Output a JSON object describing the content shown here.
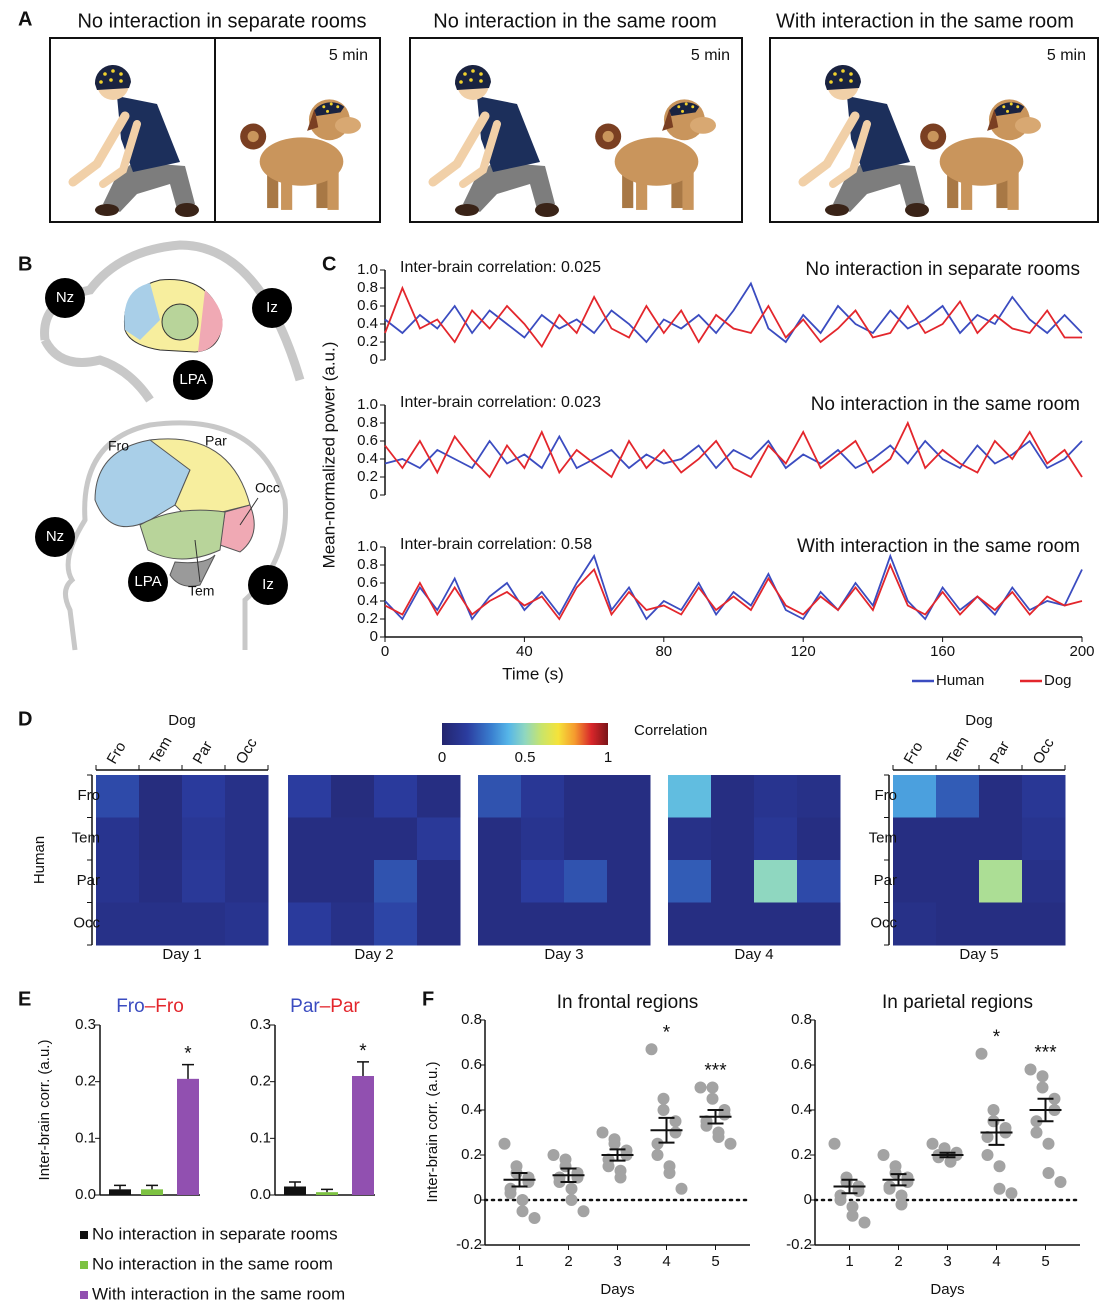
{
  "panel_labels": [
    "A",
    "B",
    "C",
    "D",
    "E",
    "F"
  ],
  "panel_a": [
    {
      "title": "No interaction in separate rooms",
      "duration": "5 min"
    },
    {
      "title": "No interaction in the same room",
      "duration": "5 min"
    },
    {
      "title": "With interaction in the same room",
      "duration": "5 min"
    }
  ],
  "panel_b": {
    "dog": [
      "Nz",
      "Iz",
      "LPA"
    ],
    "human": [
      "Fro",
      "Par",
      "Occ",
      "Nz",
      "LPA",
      "Tem",
      "Iz"
    ]
  },
  "chart_data": [
    {
      "type": "line",
      "ylabel": "Mean-normalized power (a.u.)",
      "xlabel": "Time (s)",
      "x": [
        0,
        5,
        10,
        15,
        20,
        25,
        30,
        35,
        40,
        45,
        50,
        55,
        60,
        65,
        70,
        75,
        80,
        85,
        90,
        95,
        100,
        105,
        110,
        115,
        120,
        125,
        130,
        135,
        140,
        145,
        150,
        155,
        160,
        165,
        170,
        175,
        180,
        185,
        190,
        195,
        200
      ],
      "xlim": [
        0,
        200
      ],
      "xticks": [
        0,
        40,
        80,
        120,
        160,
        200
      ],
      "ylim": [
        0,
        1
      ],
      "yticks": [
        0,
        0.2,
        0.4,
        0.6,
        0.8,
        {
          "value": 1,
          "label": "1.0"
        }
      ],
      "series": [
        {
          "name": "Human",
          "color": "#3b4cc0"
        },
        {
          "name": "Dog",
          "color": "#e3262c"
        }
      ],
      "panels": [
        {
          "annotation": "Inter-brain correlation: 0.025",
          "title": "No interaction in separate rooms",
          "values": [
            [
              0.45,
              0.3,
              0.5,
              0.35,
              0.6,
              0.3,
              0.55,
              0.4,
              0.25,
              0.5,
              0.35,
              0.45,
              0.3,
              0.55,
              0.4,
              0.2,
              0.45,
              0.35,
              0.5,
              0.3,
              0.55,
              0.85,
              0.35,
              0.2,
              0.5,
              0.3,
              0.6,
              0.4,
              0.3,
              0.55,
              0.35,
              0.45,
              0.6,
              0.3,
              0.5,
              0.4,
              0.7,
              0.45,
              0.3,
              0.5,
              0.3
            ],
            [
              0.3,
              0.8,
              0.35,
              0.45,
              0.2,
              0.55,
              0.35,
              0.6,
              0.4,
              0.15,
              0.5,
              0.3,
              0.7,
              0.35,
              0.25,
              0.6,
              0.3,
              0.55,
              0.2,
              0.5,
              0.35,
              0.3,
              0.6,
              0.25,
              0.45,
              0.2,
              0.35,
              0.55,
              0.25,
              0.3,
              0.6,
              0.3,
              0.4,
              0.65,
              0.3,
              0.5,
              0.35,
              0.3,
              0.55,
              0.25,
              0.25
            ]
          ]
        },
        {
          "annotation": "Inter-brain correlation: 0.023",
          "title": "No interaction  in the same room",
          "values": [
            [
              0.35,
              0.4,
              0.3,
              0.5,
              0.4,
              0.3,
              0.6,
              0.35,
              0.45,
              0.3,
              0.65,
              0.3,
              0.4,
              0.5,
              0.3,
              0.45,
              0.35,
              0.4,
              0.55,
              0.3,
              0.5,
              0.4,
              0.6,
              0.3,
              0.45,
              0.35,
              0.5,
              0.3,
              0.4,
              0.55,
              0.35,
              0.6,
              0.4,
              0.3,
              0.55,
              0.35,
              0.45,
              0.6,
              0.3,
              0.4,
              0.6
            ],
            [
              0.55,
              0.3,
              0.6,
              0.25,
              0.65,
              0.4,
              0.2,
              0.55,
              0.3,
              0.7,
              0.25,
              0.5,
              0.35,
              0.2,
              0.6,
              0.3,
              0.5,
              0.25,
              0.4,
              0.6,
              0.3,
              0.2,
              0.55,
              0.35,
              0.7,
              0.3,
              0.45,
              0.6,
              0.25,
              0.4,
              0.8,
              0.3,
              0.5,
              0.35,
              0.25,
              0.6,
              0.4,
              0.7,
              0.35,
              0.5,
              0.2
            ]
          ]
        },
        {
          "annotation": "Inter-brain correlation: 0.58",
          "title": "With interaction in the same room",
          "values": [
            [
              0.4,
              0.2,
              0.55,
              0.3,
              0.65,
              0.2,
              0.45,
              0.6,
              0.3,
              0.5,
              0.25,
              0.6,
              0.9,
              0.3,
              0.55,
              0.2,
              0.4,
              0.3,
              0.6,
              0.25,
              0.5,
              0.35,
              0.7,
              0.3,
              0.2,
              0.5,
              0.3,
              0.6,
              0.35,
              0.9,
              0.4,
              0.2,
              0.55,
              0.3,
              0.45,
              0.25,
              0.55,
              0.3,
              0.4,
              0.35,
              0.75
            ],
            [
              0.35,
              0.25,
              0.6,
              0.25,
              0.55,
              0.25,
              0.4,
              0.5,
              0.35,
              0.45,
              0.2,
              0.55,
              0.75,
              0.25,
              0.5,
              0.3,
              0.35,
              0.25,
              0.55,
              0.3,
              0.45,
              0.3,
              0.65,
              0.35,
              0.25,
              0.45,
              0.3,
              0.55,
              0.3,
              0.8,
              0.35,
              0.25,
              0.5,
              0.25,
              0.45,
              0.3,
              0.5,
              0.25,
              0.45,
              0.35,
              0.4
            ]
          ]
        }
      ]
    },
    {
      "type": "heatmap",
      "row_label": "Human",
      "col_label": "Dog",
      "rows": [
        "Fro",
        "Tem",
        "Par",
        "Occ"
      ],
      "cols": [
        "Fro",
        "Tem",
        "Par",
        "Occ"
      ],
      "colorbar": {
        "label": "Correlation",
        "lim": [
          0,
          1
        ],
        "ticks": [
          0,
          0.5,
          1
        ]
      },
      "panels": [
        {
          "title": "Day 1",
          "values": [
            [
              0.18,
              0.05,
              0.14,
              0.08
            ],
            [
              0.1,
              0.05,
              0.12,
              0.08
            ],
            [
              0.1,
              0.06,
              0.13,
              0.08
            ],
            [
              0.08,
              0.08,
              0.08,
              0.1
            ]
          ]
        },
        {
          "title": "Day 2",
          "values": [
            [
              0.15,
              0.05,
              0.14,
              0.06
            ],
            [
              0.06,
              0.06,
              0.06,
              0.13
            ],
            [
              0.06,
              0.06,
              0.2,
              0.06
            ],
            [
              0.14,
              0.08,
              0.17,
              0.06
            ]
          ]
        },
        {
          "title": "Day 3",
          "values": [
            [
              0.2,
              0.12,
              0.06,
              0.06
            ],
            [
              0.06,
              0.1,
              0.06,
              0.06
            ],
            [
              0.06,
              0.15,
              0.2,
              0.06
            ],
            [
              0.06,
              0.06,
              0.06,
              0.06
            ]
          ]
        },
        {
          "title": "Day 4",
          "values": [
            [
              0.42,
              0.06,
              0.1,
              0.08
            ],
            [
              0.08,
              0.06,
              0.12,
              0.06
            ],
            [
              0.22,
              0.06,
              0.5,
              0.18
            ],
            [
              0.06,
              0.06,
              0.06,
              0.06
            ]
          ]
        },
        {
          "title": "Day 5",
          "values": [
            [
              0.36,
              0.22,
              0.06,
              0.12
            ],
            [
              0.06,
              0.06,
              0.06,
              0.1
            ],
            [
              0.06,
              0.06,
              0.55,
              0.08
            ],
            [
              0.08,
              0.06,
              0.06,
              0.06
            ]
          ]
        }
      ]
    },
    {
      "type": "bar",
      "ylabel": "Inter-brain corr. (a.u.)",
      "categories": [
        "No interaction in separate rooms",
        "No interaction in the same room",
        "With interaction in the same room"
      ],
      "colors": [
        "#111111",
        "#7dc242",
        "#9150b0"
      ],
      "ylim": [
        0,
        0.3
      ],
      "yticks": [
        {
          "value": 0,
          "label": "0.0"
        },
        0.1,
        0.2,
        0.3
      ],
      "panels": [
        {
          "title": [
            "Fro",
            "–Fro"
          ],
          "values": [
            0.01,
            0.01,
            0.205
          ],
          "errors": [
            0.007,
            0.007,
            0.025
          ],
          "significance": [
            null,
            null,
            "*"
          ]
        },
        {
          "title": [
            "Par",
            "–Par"
          ],
          "values": [
            0.015,
            0.005,
            0.21
          ],
          "errors": [
            0.008,
            0.005,
            0.025
          ],
          "significance": [
            null,
            null,
            "*"
          ]
        }
      ]
    },
    {
      "type": "dot",
      "ylabel": "Inter-brain corr. (a.u.)",
      "xlabel": "Days",
      "color": "#a3a3a3",
      "categories": [
        "1",
        "2",
        "3",
        "4",
        "5"
      ],
      "ylim": [
        -0.2,
        0.8
      ],
      "yticks": [
        -0.2,
        0,
        0.2,
        0.4,
        0.6,
        0.8
      ],
      "panels": [
        {
          "title": "In frontal regions",
          "points": [
            [
              0.25,
              0.15,
              0.12,
              0.1,
              0.08,
              0.05,
              0.03,
              0.0,
              -0.05,
              -0.08
            ],
            [
              0.2,
              0.18,
              0.15,
              0.12,
              0.1,
              0.1,
              0.08,
              0.05,
              0.0,
              -0.05
            ],
            [
              0.3,
              0.27,
              0.25,
              0.22,
              0.2,
              0.18,
              0.15,
              0.13,
              0.1
            ],
            [
              0.67,
              0.45,
              0.4,
              0.35,
              0.3,
              0.25,
              0.2,
              0.15,
              0.12,
              0.05
            ],
            [
              0.5,
              0.5,
              0.45,
              0.4,
              0.38,
              0.35,
              0.33,
              0.3,
              0.28,
              0.25
            ]
          ],
          "means": [
            0.09,
            0.11,
            0.2,
            0.31,
            0.37
          ],
          "errors": [
            0.03,
            0.03,
            0.025,
            0.055,
            0.03
          ],
          "significance": [
            null,
            null,
            null,
            "*",
            "***"
          ]
        },
        {
          "title": "In parietal regions",
          "points": [
            [
              0.25,
              0.1,
              0.08,
              0.06,
              0.04,
              0.02,
              0,
              -0.03,
              -0.07,
              -0.1
            ],
            [
              0.2,
              0.15,
              0.12,
              0.1,
              0.08,
              0.06,
              0.05,
              0.02,
              -0.02
            ],
            [
              0.25,
              0.23,
              0.22,
              0.21,
              0.2,
              0.2,
              0.19,
              0.17
            ],
            [
              0.65,
              0.4,
              0.35,
              0.32,
              0.3,
              0.28,
              0.2,
              0.15,
              0.05,
              0.03
            ],
            [
              0.58,
              0.55,
              0.5,
              0.45,
              0.4,
              0.35,
              0.3,
              0.25,
              0.12,
              0.08
            ]
          ],
          "means": [
            0.06,
            0.09,
            0.2,
            0.3,
            0.4
          ],
          "errors": [
            0.03,
            0.025,
            0.01,
            0.055,
            0.05
          ],
          "significance": [
            null,
            null,
            null,
            "*",
            "***"
          ]
        }
      ]
    }
  ]
}
